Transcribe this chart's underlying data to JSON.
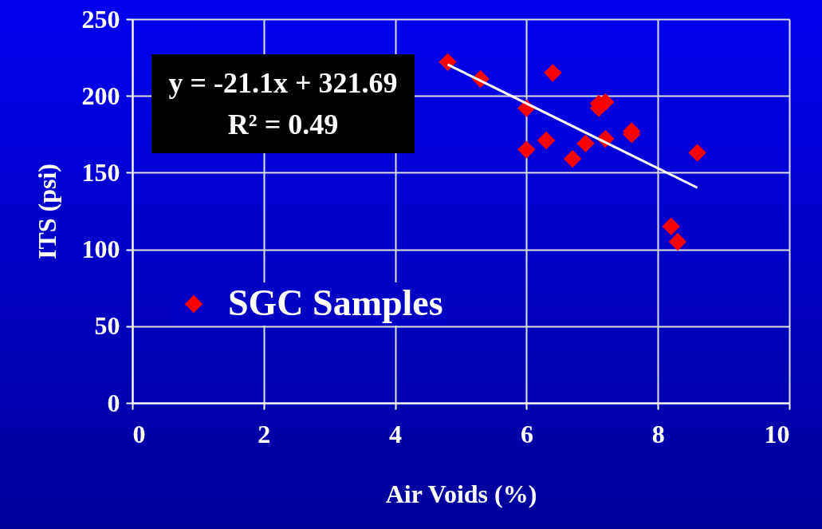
{
  "chart_data": {
    "type": "scatter",
    "xlabel": "Air Voids (%)",
    "ylabel": "ITS (psi)",
    "annotations": [
      "y = -21.1x + 321.69",
      "R² = 0.49"
    ],
    "xlim": [
      0,
      10
    ],
    "xticks": [
      0,
      2,
      4,
      6,
      8,
      10
    ],
    "ylim": [
      0,
      250
    ],
    "yticks": [
      0,
      50,
      100,
      150,
      200,
      250
    ],
    "grid": true,
    "legend": "bottom left",
    "series": [
      {
        "name": "SGC Samples",
        "color": "#ff0000",
        "marker": "diamond",
        "x": [
          4.8,
          5.3,
          6.4,
          6.0,
          6.0,
          6.3,
          6.7,
          6.9,
          7.1,
          7.2,
          7.1,
          7.2,
          7.6,
          7.6,
          8.2,
          8.3,
          8.6
        ],
        "values": [
          222,
          211,
          215,
          192,
          165,
          171,
          159,
          169,
          195,
          196,
          192,
          172,
          177,
          175,
          115,
          105,
          163
        ]
      },
      {
        "color": "#ffffff",
        "type": "line",
        "x": [
          4.8,
          8.6
        ],
        "values": [
          220.4,
          140.2
        ]
      }
    ]
  }
}
